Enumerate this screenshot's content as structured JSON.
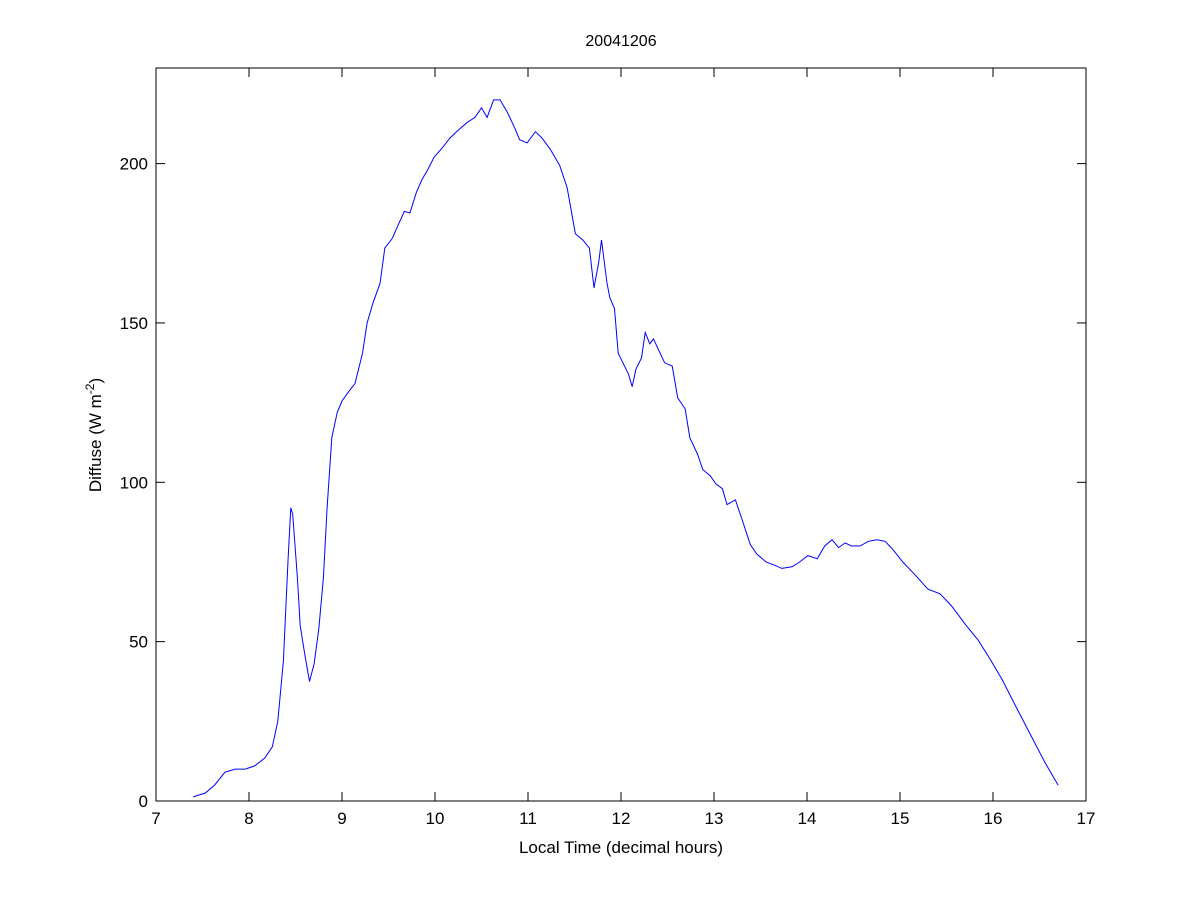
{
  "chart_data": {
    "type": "line",
    "title": "20041206",
    "xlabel": "Local Time (decimal hours)",
    "ylabel": "Diffuse (W m",
    "ylabel_superscript": "-2",
    "ylabel_suffix": ")",
    "xlim": [
      7,
      17
    ],
    "ylim": [
      0,
      230
    ],
    "xticks": [
      7,
      8,
      9,
      10,
      11,
      12,
      13,
      14,
      15,
      16,
      17
    ],
    "yticks": [
      0,
      50,
      100,
      150,
      200
    ],
    "grid": false,
    "line_color": "#0000ff",
    "x": [
      7.4,
      7.53,
      7.63,
      7.74,
      7.85,
      7.96,
      8.06,
      8.17,
      8.25,
      8.31,
      8.37,
      8.42,
      8.45,
      8.47,
      8.52,
      8.55,
      8.6,
      8.65,
      8.7,
      8.75,
      8.8,
      8.84,
      8.89,
      8.95,
      9.0,
      9.06,
      9.14,
      9.22,
      9.27,
      9.33,
      9.41,
      9.46,
      9.54,
      9.6,
      9.67,
      9.73,
      9.8,
      9.86,
      9.92,
      9.99,
      10.08,
      10.16,
      10.25,
      10.35,
      10.43,
      10.5,
      10.56,
      10.63,
      10.7,
      10.78,
      10.86,
      10.91,
      10.99,
      11.08,
      11.15,
      11.24,
      11.34,
      11.42,
      11.51,
      11.59,
      11.66,
      11.71,
      11.76,
      11.79,
      11.85,
      11.88,
      11.93,
      11.97,
      12.02,
      12.08,
      12.12,
      12.16,
      12.22,
      12.26,
      12.31,
      12.35,
      12.42,
      12.47,
      12.55,
      12.61,
      12.69,
      12.74,
      12.82,
      12.88,
      12.96,
      13.02,
      13.09,
      13.14,
      13.23,
      13.3,
      13.39,
      13.46,
      13.56,
      13.65,
      13.73,
      13.84,
      13.92,
      14.01,
      14.11,
      14.19,
      14.27,
      14.34,
      14.41,
      14.48,
      14.57,
      14.66,
      14.75,
      14.84,
      14.92,
      15.03,
      15.16,
      15.3,
      15.43,
      15.56,
      15.7,
      15.84,
      15.97,
      16.1,
      16.24,
      16.4,
      16.56,
      16.7
    ],
    "y": [
      1.3,
      2.5,
      5,
      9,
      10,
      10,
      11,
      13.5,
      17,
      25,
      44,
      76,
      92,
      90,
      70,
      55,
      46,
      37.5,
      43,
      54,
      70,
      92,
      114,
      122,
      125.5,
      128,
      131,
      140.5,
      150,
      156,
      162.5,
      173.5,
      176.5,
      180.5,
      185,
      184.5,
      191,
      195,
      198,
      202,
      205,
      208,
      210.5,
      213,
      214.5,
      217.5,
      214.5,
      220,
      220,
      216,
      211,
      207.5,
      206.5,
      210,
      208,
      204.5,
      199.5,
      192.5,
      178,
      176,
      173.5,
      161,
      169,
      176,
      162.5,
      158,
      154.5,
      140.5,
      137.5,
      134,
      130,
      135.5,
      139,
      147,
      143.5,
      145,
      140.5,
      137.5,
      136.5,
      126.5,
      123,
      114,
      109,
      104,
      102,
      99.5,
      98,
      93,
      94.5,
      88.5,
      80.5,
      77.5,
      75,
      74,
      73,
      73.5,
      75,
      77,
      76,
      80,
      82,
      79.5,
      81,
      80,
      80,
      81.5,
      82,
      81.5,
      79,
      75,
      71,
      66.5,
      65,
      61,
      55.5,
      50.5,
      44.5,
      38,
      30,
      21,
      12,
      5
    ]
  }
}
